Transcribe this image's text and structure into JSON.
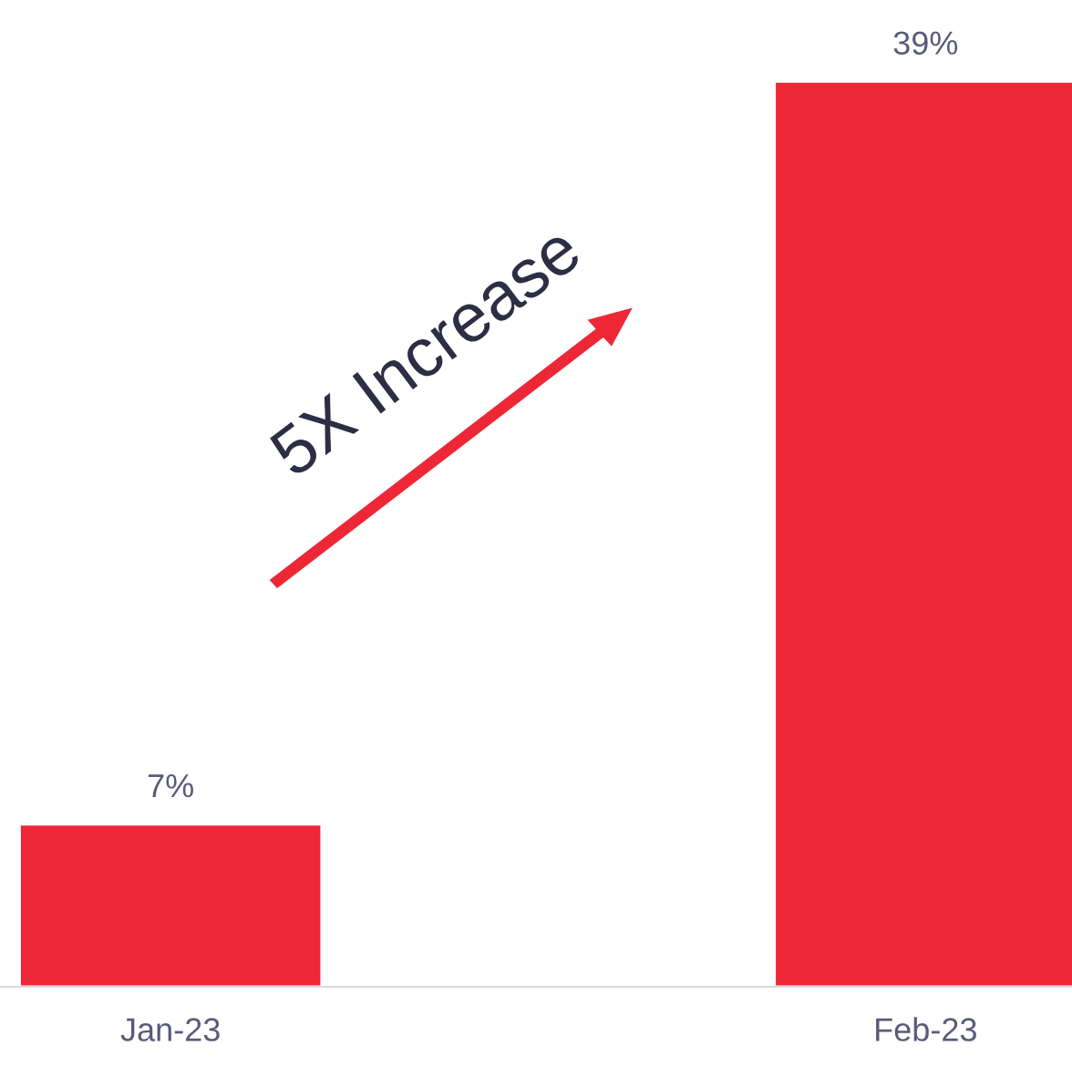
{
  "chart_data": {
    "type": "bar",
    "categories": [
      "Jan-23",
      "Feb-23"
    ],
    "values": [
      7,
      39
    ],
    "value_labels": [
      "7%",
      "39%"
    ],
    "color": "#ee2737",
    "annotations": [
      "5X Increase"
    ],
    "grid": false,
    "legend": false,
    "tick_labels": "x"
  }
}
